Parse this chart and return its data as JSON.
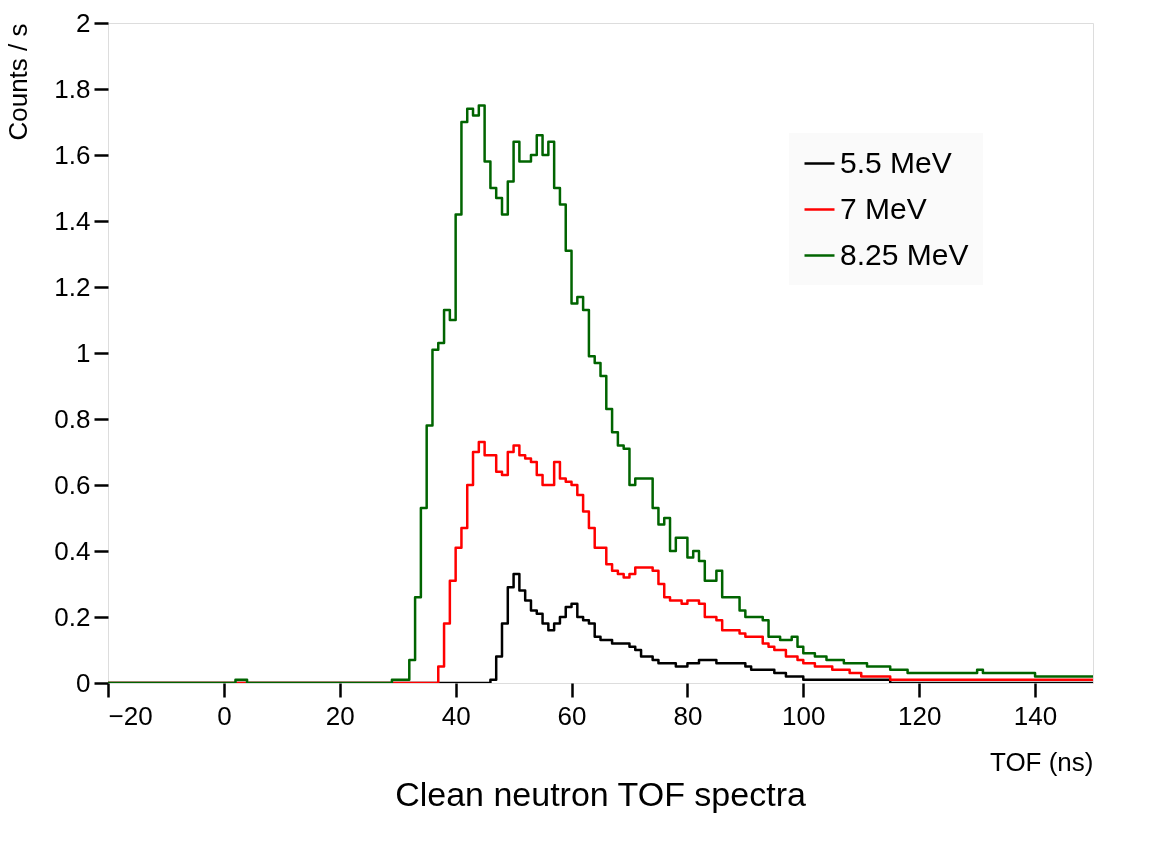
{
  "chart_data": {
    "type": "step",
    "xlabel": "TOF (ns)",
    "ylabel": "Counts / s",
    "xlim": [
      -20,
      150
    ],
    "ylim": [
      0,
      2
    ],
    "xticks": [
      -20,
      0,
      20,
      40,
      60,
      80,
      100,
      120,
      140
    ],
    "yticks": [
      0,
      0.2,
      0.4,
      0.6,
      0.8,
      1,
      1.2,
      1.4,
      1.6,
      1.8,
      2
    ],
    "grid": false,
    "legend": "top right",
    "annotations": [
      "Clean neutron TOF spectra"
    ],
    "series": [
      {
        "name": "5.5 MeV",
        "color": "#000000",
        "x": [
          -20,
          46,
          47,
          48,
          49,
          50,
          51,
          52,
          53,
          54,
          55,
          56,
          57,
          58,
          59,
          60,
          61,
          62,
          63,
          64,
          65,
          66,
          67,
          68,
          69,
          70,
          71,
          72,
          73,
          74,
          75,
          76,
          78,
          80,
          82,
          85,
          87,
          90,
          91,
          95,
          97,
          100,
          115,
          150
        ],
        "values": [
          0,
          0.01,
          0.08,
          0.18,
          0.29,
          0.33,
          0.28,
          0.25,
          0.22,
          0.21,
          0.18,
          0.16,
          0.18,
          0.2,
          0.23,
          0.24,
          0.2,
          0.19,
          0.18,
          0.14,
          0.13,
          0.13,
          0.12,
          0.12,
          0.12,
          0.11,
          0.1,
          0.08,
          0.08,
          0.07,
          0.06,
          0.06,
          0.05,
          0.06,
          0.07,
          0.06,
          0.06,
          0.05,
          0.04,
          0.03,
          0.02,
          0.01,
          0,
          0
        ]
      },
      {
        "name": "7 MeV",
        "color": "#ff0000",
        "x": [
          -20,
          37,
          38,
          39,
          40,
          41,
          42,
          43,
          44,
          45,
          46,
          47,
          48,
          49,
          50,
          51,
          52,
          53,
          54,
          55,
          57,
          58,
          59,
          60,
          61,
          62,
          63,
          64,
          66,
          67,
          68,
          69,
          70,
          71,
          72,
          74,
          75,
          76,
          77,
          79,
          80,
          82,
          83,
          85,
          86,
          89,
          90,
          93,
          94,
          95,
          97,
          99,
          100,
          102,
          105,
          108,
          110,
          115,
          150
        ],
        "values": [
          0,
          0.05,
          0.18,
          0.31,
          0.41,
          0.47,
          0.6,
          0.7,
          0.73,
          0.69,
          0.69,
          0.64,
          0.63,
          0.7,
          0.72,
          0.69,
          0.68,
          0.67,
          0.63,
          0.6,
          0.67,
          0.62,
          0.61,
          0.6,
          0.57,
          0.52,
          0.47,
          0.41,
          0.36,
          0.34,
          0.33,
          0.32,
          0.33,
          0.35,
          0.35,
          0.34,
          0.3,
          0.26,
          0.25,
          0.24,
          0.25,
          0.24,
          0.2,
          0.19,
          0.16,
          0.15,
          0.14,
          0.12,
          0.11,
          0.1,
          0.08,
          0.07,
          0.06,
          0.05,
          0.04,
          0.03,
          0.02,
          0.01,
          0.01
        ]
      },
      {
        "name": "8.25 MeV",
        "color": "#006400",
        "x": [
          -20,
          2,
          4,
          29,
          30,
          32,
          33,
          34,
          35,
          36,
          37,
          38,
          39,
          40,
          41,
          42,
          43,
          44,
          45,
          46,
          47,
          48,
          49,
          50,
          51,
          52,
          53,
          54,
          55,
          56,
          57,
          58,
          59,
          60,
          61,
          62,
          63,
          64,
          65,
          66,
          67,
          68,
          69,
          70,
          71,
          74,
          75,
          76,
          77,
          78,
          80,
          81,
          82,
          83,
          85,
          86,
          89,
          90,
          91,
          93,
          94,
          96,
          98,
          99,
          100,
          102,
          104,
          107,
          108,
          111,
          115,
          118,
          120,
          130,
          131,
          140,
          150
        ],
        "values": [
          0,
          0.01,
          0,
          0.01,
          0.01,
          0.07,
          0.26,
          0.53,
          0.78,
          1.01,
          1.03,
          1.13,
          1.1,
          1.42,
          1.7,
          1.74,
          1.72,
          1.75,
          1.58,
          1.5,
          1.47,
          1.42,
          1.52,
          1.64,
          1.58,
          1.58,
          1.6,
          1.66,
          1.6,
          1.64,
          1.5,
          1.45,
          1.31,
          1.15,
          1.17,
          1.13,
          0.99,
          0.97,
          0.93,
          0.83,
          0.76,
          0.72,
          0.71,
          0.6,
          0.62,
          0.53,
          0.48,
          0.5,
          0.4,
          0.44,
          0.38,
          0.4,
          0.37,
          0.31,
          0.34,
          0.26,
          0.22,
          0.2,
          0.2,
          0.19,
          0.14,
          0.13,
          0.14,
          0.11,
          0.09,
          0.08,
          0.07,
          0.06,
          0.06,
          0.05,
          0.04,
          0.03,
          0.03,
          0.04,
          0.03,
          0.02,
          0.02
        ]
      }
    ]
  }
}
